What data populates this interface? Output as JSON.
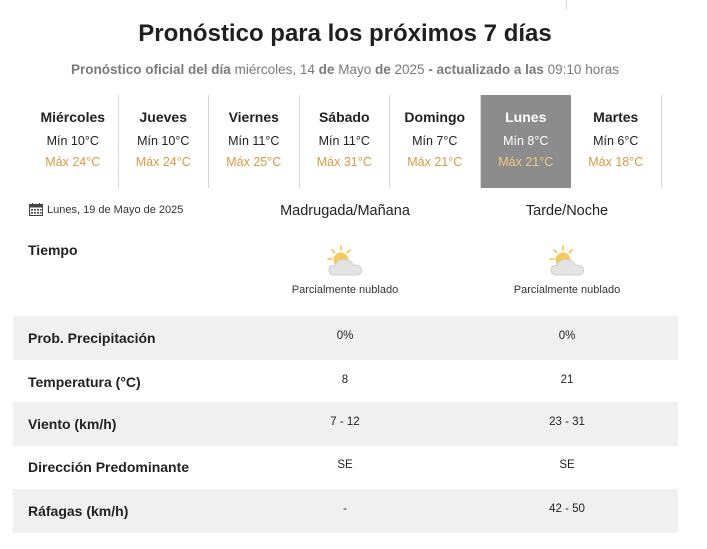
{
  "title": "Pronóstico para los próximos 7 días",
  "subtitle": {
    "prefix": "Pronóstico oficial del día",
    "weekday": "miércoles,",
    "day": "14",
    "de1": "de",
    "month": "Mayo",
    "de2": "de",
    "year": "2025",
    "updated": "- actualizado a las",
    "time": "09:10",
    "hours": "horas"
  },
  "days": [
    {
      "name": "Miércoles",
      "min": "Mín 10°C",
      "max": "Máx 24°C",
      "active": false
    },
    {
      "name": "Jueves",
      "min": "Mín 10°C",
      "max": "Máx 24°C",
      "active": false
    },
    {
      "name": "Viernes",
      "min": "Mín 11°C",
      "max": "Máx 25°C",
      "active": false
    },
    {
      "name": "Sábado",
      "min": "Mín 11°C",
      "max": "Máx 31°C",
      "active": false
    },
    {
      "name": "Domingo",
      "min": "Mín 7°C",
      "max": "Máx 21°C",
      "active": false
    },
    {
      "name": "Lunes",
      "min": "Mín 8°C",
      "max": "Máx 21°C",
      "active": true
    },
    {
      "name": "Martes",
      "min": "Mín 6°C",
      "max": "Máx 18°C",
      "active": false
    }
  ],
  "detail": {
    "date": "Lunes, 19 de Mayo de 2025",
    "col_a": "Madrugada/Mañana",
    "col_b": "Tarde/Noche",
    "tiempo_label": "Tiempo",
    "weather_a": "Parcialmente nublado",
    "weather_b": "Parcialmente nublado",
    "weather_icon": "partly-cloudy-icon",
    "rows": [
      {
        "label": "Prob. Precipitación",
        "a": "0%",
        "b": "0%"
      },
      {
        "label": "Temperatura (°C)",
        "a": "8",
        "b": "21"
      },
      {
        "label": "Viento (km/h)",
        "a": "7 - 12",
        "b": "23 - 31"
      },
      {
        "label": "Dirección Predominante",
        "a": "SE",
        "b": "SE"
      },
      {
        "label": "Ráfagas (km/h)",
        "a": "-",
        "b": "42 - 50"
      }
    ]
  },
  "colors": {
    "max_temp": "#d79a45",
    "active_tab": "#8c8c8c",
    "row_shade": "#f0f0f0"
  }
}
